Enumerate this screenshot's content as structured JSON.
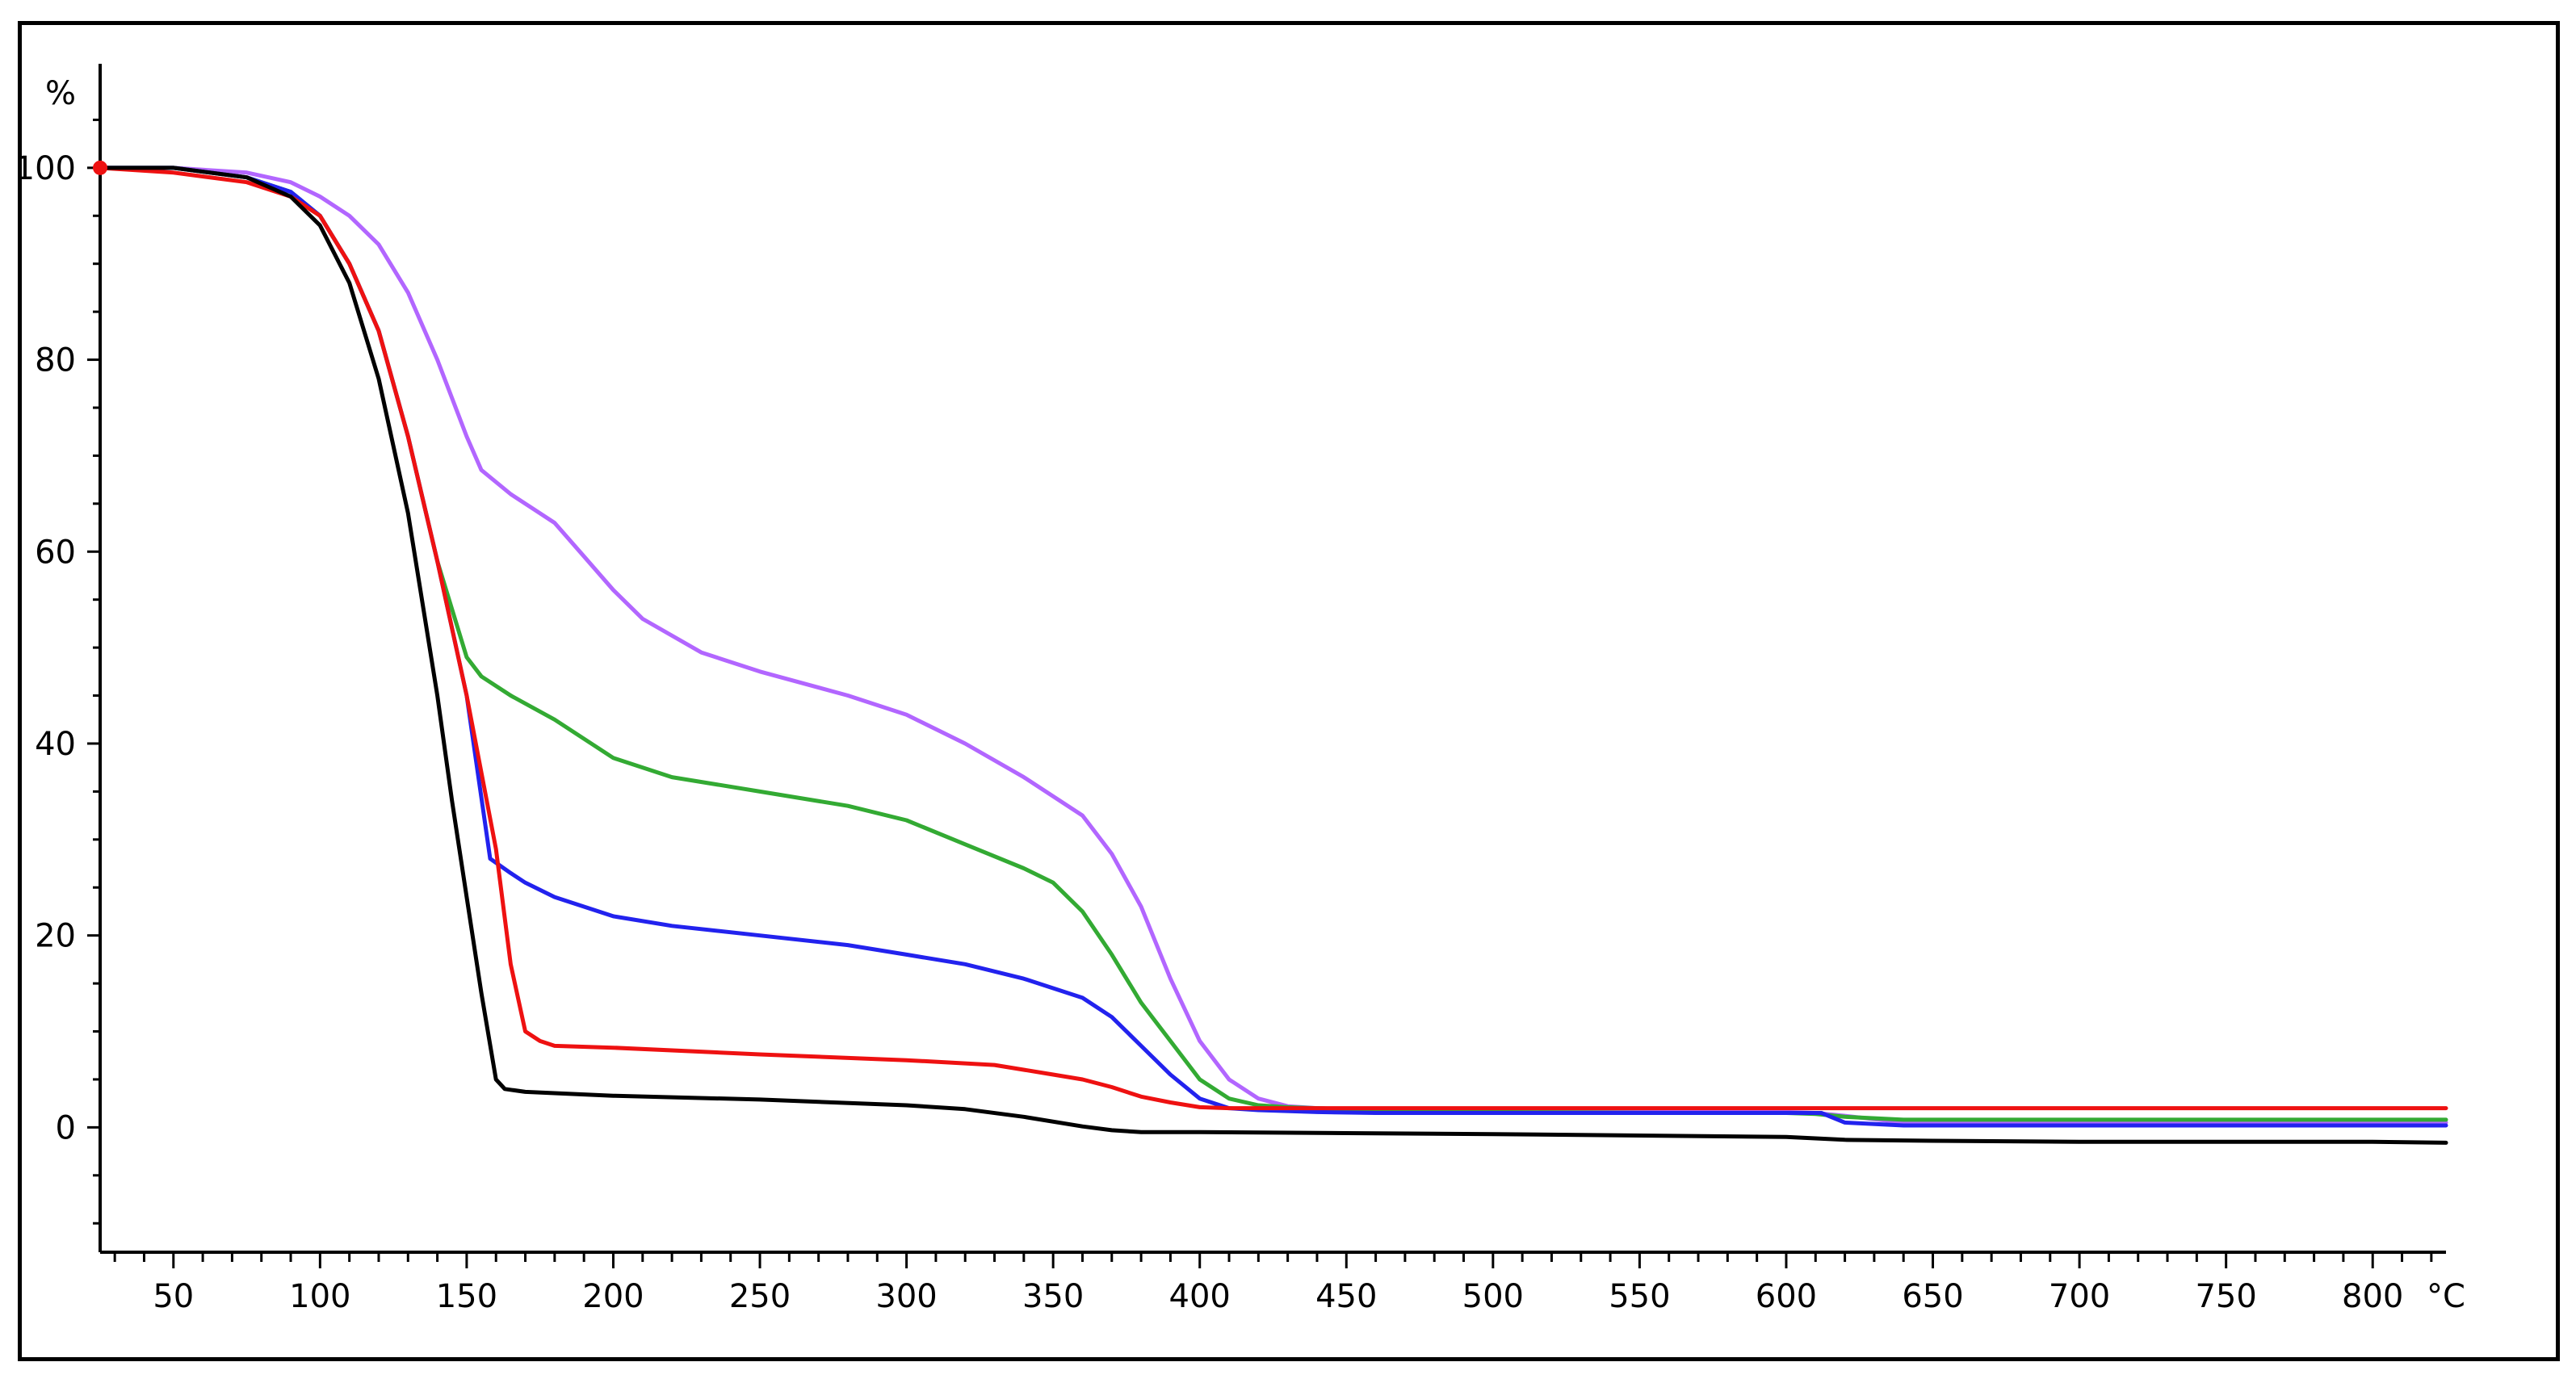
{
  "chart_data": {
    "type": "line",
    "title": "",
    "xlabel": "",
    "ylabel": "",
    "x_unit": "°C",
    "y_unit": "%",
    "xlim": [
      25,
      825
    ],
    "ylim": [
      -12,
      110
    ],
    "x_major_ticks": [
      50,
      100,
      150,
      200,
      250,
      300,
      350,
      400,
      450,
      500,
      550,
      600,
      650,
      700,
      750,
      800
    ],
    "x_tick_labels": [
      "50",
      "100",
      "150",
      "200",
      "250",
      "300",
      "350",
      "400",
      "450",
      "500",
      "550",
      "600",
      "650",
      "700",
      "750",
      "800"
    ],
    "y_major_ticks": [
      0,
      20,
      40,
      60,
      80,
      100
    ],
    "y_tick_labels": [
      "0",
      "20",
      "40",
      "60",
      "80",
      "100"
    ],
    "grid": false,
    "legend": "none",
    "series": [
      {
        "color": "#b266ff",
        "x": [
          25,
          50,
          75,
          90,
          100,
          110,
          120,
          130,
          140,
          150,
          155,
          165,
          180,
          190,
          200,
          210,
          230,
          250,
          280,
          300,
          320,
          340,
          360,
          370,
          380,
          390,
          400,
          410,
          420,
          430,
          440,
          460,
          500,
          560,
          600,
          610,
          620,
          640,
          700,
          800,
          825
        ],
        "y": [
          100,
          100,
          99.5,
          98.5,
          97,
          95,
          92,
          87,
          80,
          72,
          68.5,
          66,
          63,
          59.5,
          56,
          53,
          49.5,
          47.5,
          45,
          43,
          40,
          36.5,
          32.5,
          28.5,
          23,
          15.5,
          9,
          5,
          3,
          2.2,
          2,
          1.8,
          1.6,
          1.6,
          1.6,
          1.5,
          1.2,
          0.5,
          0.5,
          0.5,
          0.5
        ]
      },
      {
        "color": "#33aa33",
        "x": [
          25,
          50,
          75,
          90,
          100,
          110,
          120,
          130,
          140,
          150,
          155,
          165,
          180,
          200,
          220,
          250,
          280,
          300,
          320,
          340,
          350,
          360,
          370,
          380,
          390,
          400,
          410,
          420,
          430,
          440,
          460,
          500,
          560,
          600,
          610,
          620,
          640,
          700,
          800,
          825
        ],
        "y": [
          100,
          100,
          99,
          97.5,
          95,
          90,
          83,
          72,
          59,
          49,
          47,
          45,
          42.5,
          38.5,
          36.5,
          35,
          33.5,
          32,
          29.5,
          27,
          25.5,
          22.5,
          18,
          13,
          9,
          5,
          3,
          2.3,
          2.1,
          2,
          1.8,
          1.6,
          1.5,
          1.5,
          1.4,
          1.1,
          0.8,
          0.8,
          0.8,
          0.8
        ]
      },
      {
        "color": "#2222ee",
        "x": [
          25,
          50,
          75,
          90,
          100,
          110,
          120,
          130,
          140,
          150,
          158,
          165,
          170,
          180,
          200,
          220,
          250,
          280,
          300,
          320,
          340,
          360,
          370,
          380,
          390,
          400,
          410,
          420,
          440,
          460,
          500,
          560,
          600,
          612,
          620,
          640,
          700,
          800,
          825
        ],
        "y": [
          100,
          100,
          99,
          97.5,
          95,
          90,
          83,
          72,
          59,
          45,
          28,
          26.5,
          25.5,
          24,
          22,
          21,
          20,
          19,
          18,
          17,
          15.5,
          13.5,
          11.5,
          8.5,
          5.5,
          3,
          2,
          1.8,
          1.6,
          1.5,
          1.5,
          1.5,
          1.5,
          1.5,
          0.5,
          0.2,
          0.2,
          0.2,
          0.2
        ]
      },
      {
        "color": "#ee1111",
        "x": [
          25,
          50,
          75,
          90,
          100,
          110,
          120,
          130,
          140,
          150,
          160,
          165,
          170,
          175,
          180,
          200,
          250,
          300,
          330,
          350,
          360,
          370,
          380,
          390,
          400,
          410,
          420,
          440,
          500,
          600,
          700,
          800,
          825
        ],
        "y": [
          100,
          99.5,
          98.5,
          97,
          95,
          90,
          83,
          72,
          59,
          45,
          29,
          17,
          10,
          9,
          8.5,
          8.3,
          7.6,
          7,
          6.5,
          5.5,
          5,
          4.2,
          3.2,
          2.6,
          2.1,
          2,
          2,
          2,
          2,
          2,
          2,
          2,
          2
        ]
      },
      {
        "color": "#000000",
        "x": [
          25,
          50,
          75,
          90,
          100,
          110,
          120,
          130,
          140,
          145,
          150,
          155,
          160,
          163,
          170,
          200,
          250,
          300,
          320,
          340,
          360,
          370,
          380,
          400,
          450,
          500,
          600,
          620,
          650,
          700,
          800,
          825
        ],
        "y": [
          100,
          100,
          99,
          97,
          94,
          88,
          78,
          64,
          45,
          34,
          24,
          14,
          5,
          4,
          3.7,
          3.3,
          2.9,
          2.3,
          1.9,
          1.1,
          0.1,
          -0.3,
          -0.5,
          -0.5,
          -0.6,
          -0.7,
          -1,
          -1.3,
          -1.4,
          -1.5,
          -1.5,
          -1.6
        ]
      }
    ]
  }
}
